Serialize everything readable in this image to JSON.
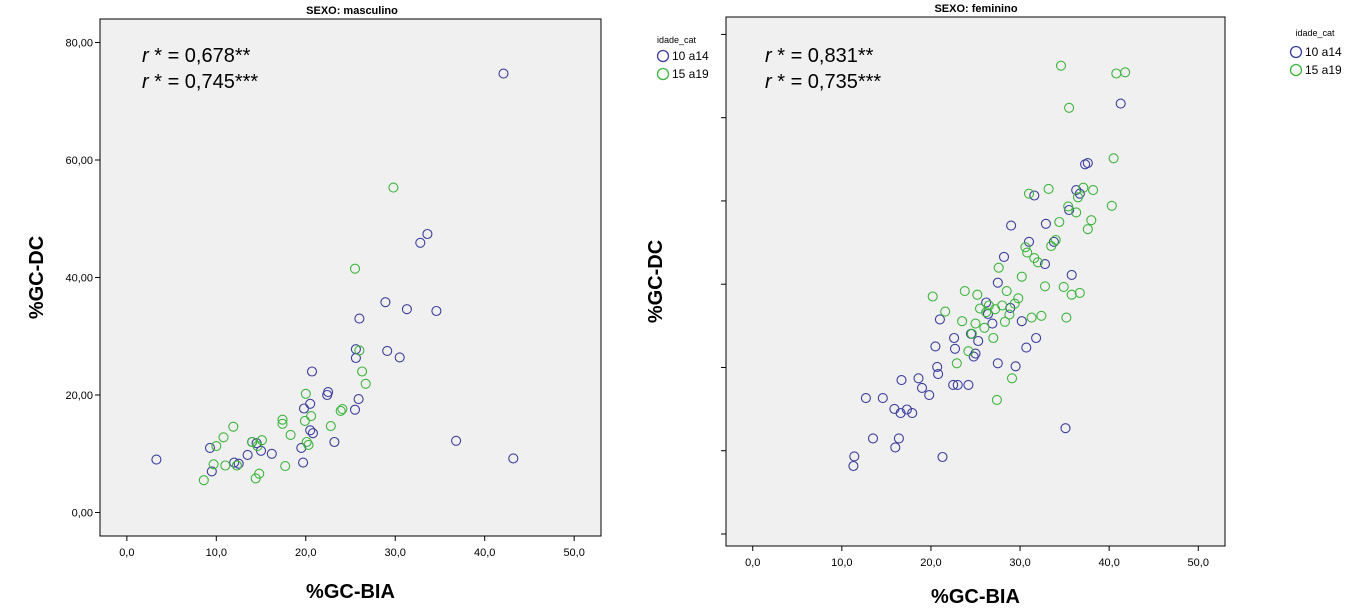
{
  "chart_data": [
    {
      "type": "scatter",
      "title": "SEXO: masculino",
      "xlabel": "%GC-BIA",
      "ylabel": "%GC-DC",
      "xlim": [
        -3,
        53
      ],
      "ylim": [
        -4,
        84
      ],
      "xticks": [
        0,
        10,
        20,
        30,
        40,
        50
      ],
      "xtick_labels": [
        "0,0",
        "10,0",
        "20,0",
        "30,0",
        "40,0",
        "50,0"
      ],
      "yticks": [
        0,
        20,
        40,
        60,
        80
      ],
      "ytick_labels": [
        "0,00",
        "20,00",
        "40,00",
        "60,00",
        "80,00"
      ],
      "annotations": [
        {
          "prefix": "r",
          "text": " * = 0,678**"
        },
        {
          "prefix": "r",
          "text": " * = 0,745***"
        }
      ],
      "legend": null,
      "series": [
        {
          "name": "10 a14",
          "color": "#3d3d9e",
          "points": [
            [
              3.3,
              9
            ],
            [
              9.3,
              11
            ],
            [
              9.5,
              7
            ],
            [
              12,
              8.5
            ],
            [
              12.5,
              8.3
            ],
            [
              13.5,
              9.8
            ],
            [
              14,
              12
            ],
            [
              14.5,
              11.8
            ],
            [
              15,
              10.5
            ],
            [
              16.2,
              10
            ],
            [
              19.5,
              11
            ],
            [
              19.7,
              8.5
            ],
            [
              19.8,
              17.7
            ],
            [
              20.5,
              18.5
            ],
            [
              20.7,
              24
            ],
            [
              20.5,
              14
            ],
            [
              20.8,
              13.5
            ],
            [
              22.5,
              20.5
            ],
            [
              22.4,
              20
            ],
            [
              23.2,
              12
            ],
            [
              25.5,
              17.5
            ],
            [
              25.6,
              26.3
            ],
            [
              25.6,
              27.8
            ],
            [
              25.9,
              19.3
            ],
            [
              26,
              33
            ],
            [
              28.9,
              35.8
            ],
            [
              29.1,
              27.5
            ],
            [
              30.5,
              26.4
            ],
            [
              31.3,
              34.6
            ],
            [
              32.8,
              45.9
            ],
            [
              33.6,
              47.4
            ],
            [
              34.6,
              34.3
            ],
            [
              36.8,
              12.2
            ],
            [
              42.1,
              74.7
            ],
            [
              43.2,
              9.2
            ]
          ]
        },
        {
          "name": "15 a19",
          "color": "#3cb53c",
          "points": [
            [
              8.6,
              5.5
            ],
            [
              9.7,
              8.2
            ],
            [
              10.0,
              11.3
            ],
            [
              10.8,
              12.8
            ],
            [
              11.0,
              8.0
            ],
            [
              11.9,
              14.6
            ],
            [
              12.3,
              8.0
            ],
            [
              14.0,
              12.0
            ],
            [
              14.4,
              5.8
            ],
            [
              14.6,
              11.3
            ],
            [
              14.8,
              6.6
            ],
            [
              15.1,
              12.3
            ],
            [
              17.4,
              15.8
            ],
            [
              17.4,
              15.1
            ],
            [
              17.7,
              7.9
            ],
            [
              18.3,
              13.2
            ],
            [
              19.9,
              15.6
            ],
            [
              20.0,
              20.2
            ],
            [
              20.1,
              12.0
            ],
            [
              20.3,
              11.5
            ],
            [
              20.6,
              16.4
            ],
            [
              22.8,
              14.7
            ],
            [
              23.9,
              17.3
            ],
            [
              24.1,
              17.6
            ],
            [
              25.5,
              41.5
            ],
            [
              26.0,
              27.6
            ],
            [
              26.3,
              24.0
            ],
            [
              26.7,
              21.9
            ],
            [
              29.8,
              55.3
            ]
          ]
        }
      ]
    },
    {
      "type": "scatter",
      "title": "SEXO: feminino",
      "xlabel": "%GC-BIA",
      "ylabel": "%GC-DC",
      "xlim": [
        -3,
        53
      ],
      "ylim": [
        -2,
        86
      ],
      "xticks": [
        0,
        10,
        20,
        30,
        40,
        50
      ],
      "xtick_labels": [
        "0,0",
        "10,0",
        "20,0",
        "30,0",
        "40,0",
        "50,0"
      ],
      "yticks": [
        0,
        13.85,
        27.7,
        41.55,
        55.4,
        69.25,
        83.1
      ],
      "ytick_labels": [
        "",
        "",
        "",
        "",
        "",
        "",
        ""
      ],
      "annotations": [
        {
          "prefix": "r",
          "text": " * = 0,831**"
        },
        {
          "prefix": "r",
          "text": " * = 0,735***"
        }
      ],
      "legend": {
        "title": "idade_cat",
        "position": "outside-right"
      },
      "series": [
        {
          "name": "10 a14",
          "color": "#3d3d9e",
          "points": [
            [
              11.3,
              11.3
            ],
            [
              11.4,
              12.9
            ],
            [
              12.7,
              22.6
            ],
            [
              13.5,
              15.9
            ],
            [
              14.6,
              22.6
            ],
            [
              15.9,
              20.8
            ],
            [
              16.0,
              14.4
            ],
            [
              16.4,
              15.9
            ],
            [
              16.6,
              20.1
            ],
            [
              16.7,
              25.6
            ],
            [
              17.3,
              20.7
            ],
            [
              17.9,
              20.1
            ],
            [
              18.6,
              25.9
            ],
            [
              19.0,
              24.3
            ],
            [
              19.8,
              23.1
            ],
            [
              20.5,
              31.2
            ],
            [
              20.7,
              27.8
            ],
            [
              20.8,
              26.6
            ],
            [
              21.0,
              35.7
            ],
            [
              21.3,
              12.8
            ],
            [
              22.5,
              24.8
            ],
            [
              22.6,
              32.6
            ],
            [
              22.7,
              30.8
            ],
            [
              23.0,
              24.8
            ],
            [
              24.2,
              24.8
            ],
            [
              24.5,
              33.3
            ],
            [
              24.8,
              29.5
            ],
            [
              25.0,
              30.0
            ],
            [
              25.3,
              32.1
            ],
            [
              26.2,
              38.5
            ],
            [
              26.4,
              36.6
            ],
            [
              26.9,
              35.0
            ],
            [
              27.5,
              41.8
            ],
            [
              27.5,
              28.4
            ],
            [
              28.2,
              46.1
            ],
            [
              28.9,
              37.6
            ],
            [
              29.0,
              51.3
            ],
            [
              29.5,
              27.9
            ],
            [
              30.2,
              35.4
            ],
            [
              30.7,
              31.0
            ],
            [
              31.0,
              48.6
            ],
            [
              31.6,
              56.3
            ],
            [
              31.8,
              32.6
            ],
            [
              32.8,
              44.9
            ],
            [
              32.9,
              51.6
            ],
            [
              33.8,
              48.6
            ],
            [
              35.1,
              17.6
            ],
            [
              35.5,
              53.9
            ],
            [
              35.8,
              43.1
            ],
            [
              36.3,
              57.2
            ],
            [
              36.7,
              56.6
            ],
            [
              37.3,
              61.5
            ],
            [
              37.6,
              61.7
            ],
            [
              41.3,
              71.6
            ]
          ]
        },
        {
          "name": "15 a19",
          "color": "#3cb53c",
          "points": [
            [
              20.2,
              39.5
            ],
            [
              21.6,
              37.0
            ],
            [
              22.9,
              28.4
            ],
            [
              23.5,
              35.4
            ],
            [
              23.8,
              40.4
            ],
            [
              24.2,
              30.4
            ],
            [
              24.6,
              33.3
            ],
            [
              25.0,
              35.0
            ],
            [
              25.2,
              39.8
            ],
            [
              25.5,
              37.5
            ],
            [
              26.0,
              34.3
            ],
            [
              26.2,
              36.9
            ],
            [
              26.5,
              38.0
            ],
            [
              27.0,
              32.6
            ],
            [
              27.2,
              37.4
            ],
            [
              27.4,
              22.3
            ],
            [
              27.6,
              44.3
            ],
            [
              28.0,
              38.0
            ],
            [
              28.3,
              35.3
            ],
            [
              28.5,
              40.4
            ],
            [
              28.8,
              36.5
            ],
            [
              29.1,
              25.9
            ],
            [
              29.4,
              38.3
            ],
            [
              29.8,
              39.2
            ],
            [
              30.2,
              42.8
            ],
            [
              30.6,
              47.7
            ],
            [
              30.8,
              46.8
            ],
            [
              31.0,
              56.6
            ],
            [
              31.3,
              36.0
            ],
            [
              31.6,
              45.9
            ],
            [
              32.0,
              45.2
            ],
            [
              32.4,
              36.3
            ],
            [
              32.8,
              41.2
            ],
            [
              33.2,
              57.4
            ],
            [
              33.5,
              47.9
            ],
            [
              34.0,
              48.9
            ],
            [
              34.4,
              51.9
            ],
            [
              34.6,
              77.9
            ],
            [
              34.9,
              41.1
            ],
            [
              35.2,
              36.0
            ],
            [
              35.4,
              54.5
            ],
            [
              35.5,
              70.9
            ],
            [
              35.8,
              39.8
            ],
            [
              36.3,
              53.5
            ],
            [
              36.5,
              56.0
            ],
            [
              36.7,
              40.1
            ],
            [
              37.1,
              57.6
            ],
            [
              37.6,
              50.7
            ],
            [
              38.0,
              52.2
            ],
            [
              38.2,
              57.2
            ],
            [
              40.3,
              54.6
            ],
            [
              40.5,
              62.5
            ],
            [
              40.8,
              76.6
            ],
            [
              41.8,
              76.8
            ]
          ]
        }
      ]
    }
  ]
}
